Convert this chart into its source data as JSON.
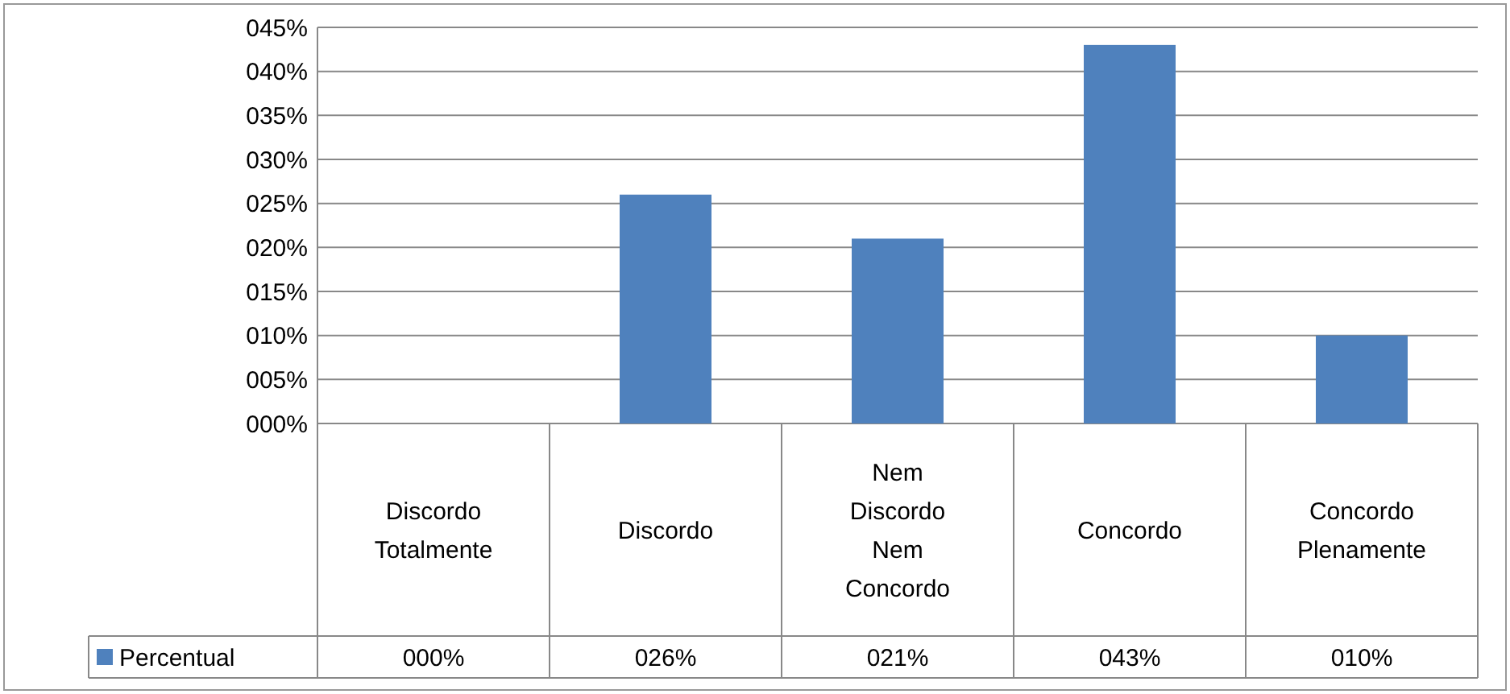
{
  "chart_data": {
    "type": "bar",
    "categories": [
      "Discordo Totalmente",
      "Discordo",
      "Nem Discordo Nem Concordo",
      "Concordo",
      "Concordo Plenamente"
    ],
    "series": [
      {
        "name": "Percentual",
        "color": "#4f81bd",
        "values": [
          0,
          26,
          21,
          43,
          10
        ],
        "value_labels": [
          "000%",
          "026%",
          "021%",
          "043%",
          "010%"
        ]
      }
    ],
    "ylim": [
      0,
      45
    ],
    "yticks": [
      {
        "value": 0,
        "label": "000%"
      },
      {
        "value": 5,
        "label": "005%"
      },
      {
        "value": 10,
        "label": "010%"
      },
      {
        "value": 15,
        "label": "015%"
      },
      {
        "value": 20,
        "label": "020%"
      },
      {
        "value": 25,
        "label": "025%"
      },
      {
        "value": 30,
        "label": "030%"
      },
      {
        "value": 35,
        "label": "035%"
      },
      {
        "value": 40,
        "label": "040%"
      },
      {
        "value": 45,
        "label": "045%"
      }
    ],
    "grid": "y",
    "legend": "bottom left"
  }
}
